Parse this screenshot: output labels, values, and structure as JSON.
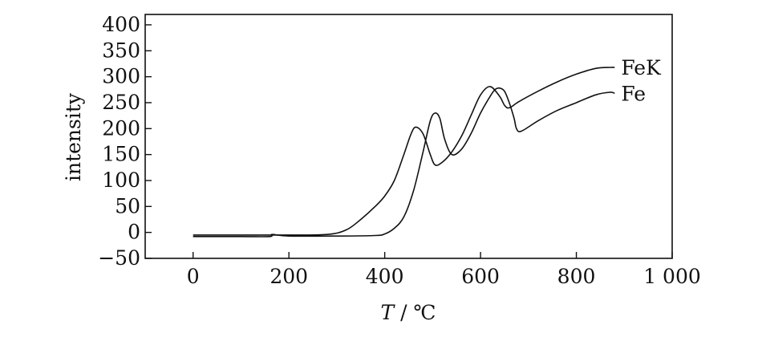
{
  "chart_data": {
    "type": "line",
    "title": "",
    "xlabel": "T / ℃",
    "xlabel_var": "T",
    "xlabel_unit": " / ℃",
    "ylabel": "intensity",
    "xlim": [
      -100,
      1000
    ],
    "ylim": [
      -50,
      420
    ],
    "x_ticks": [
      0,
      200,
      400,
      600,
      800,
      1000
    ],
    "x_tick_labels": [
      "0",
      "200",
      "400",
      "600",
      "800",
      "1 000"
    ],
    "y_ticks": [
      -50,
      0,
      50,
      100,
      150,
      200,
      250,
      300,
      350,
      400
    ],
    "y_tick_labels": [
      "−50",
      "0",
      "50",
      "100",
      "150",
      "200",
      "250",
      "300",
      "350",
      "400"
    ],
    "grid": false,
    "legend": "inline-right",
    "series": [
      {
        "name": "FeK",
        "x": [
          0,
          100,
          200,
          280,
          320,
          350,
          380,
          400,
          420,
          440,
          455,
          465,
          480,
          495,
          505,
          520,
          540,
          560,
          580,
          600,
          620,
          640,
          650,
          660,
          680,
          720,
          760,
          800,
          840,
          870,
          880
        ],
        "y": [
          -5,
          -5,
          -5,
          -4,
          5,
          25,
          50,
          70,
          100,
          150,
          190,
          203,
          190,
          150,
          130,
          135,
          155,
          185,
          225,
          265,
          281,
          262,
          245,
          240,
          252,
          272,
          290,
          305,
          316,
          318,
          318
        ]
      },
      {
        "name": "Fe",
        "x": [
          0,
          100,
          160,
          165,
          200,
          300,
          380,
          400,
          420,
          440,
          460,
          480,
          495,
          505,
          515,
          525,
          540,
          560,
          580,
          600,
          620,
          630,
          640,
          650,
          660,
          670,
          675,
          685,
          720,
          760,
          800,
          840,
          870,
          880
        ],
        "y": [
          -8,
          -8,
          -8,
          -4,
          -7,
          -7,
          -6,
          -3,
          8,
          30,
          80,
          155,
          215,
          230,
          220,
          180,
          150,
          160,
          190,
          230,
          262,
          275,
          278,
          272,
          250,
          220,
          200,
          195,
          215,
          235,
          250,
          265,
          270,
          268
        ]
      }
    ]
  },
  "colors": {
    "line": "#111111",
    "axis": "#111111",
    "background": "#ffffff"
  }
}
